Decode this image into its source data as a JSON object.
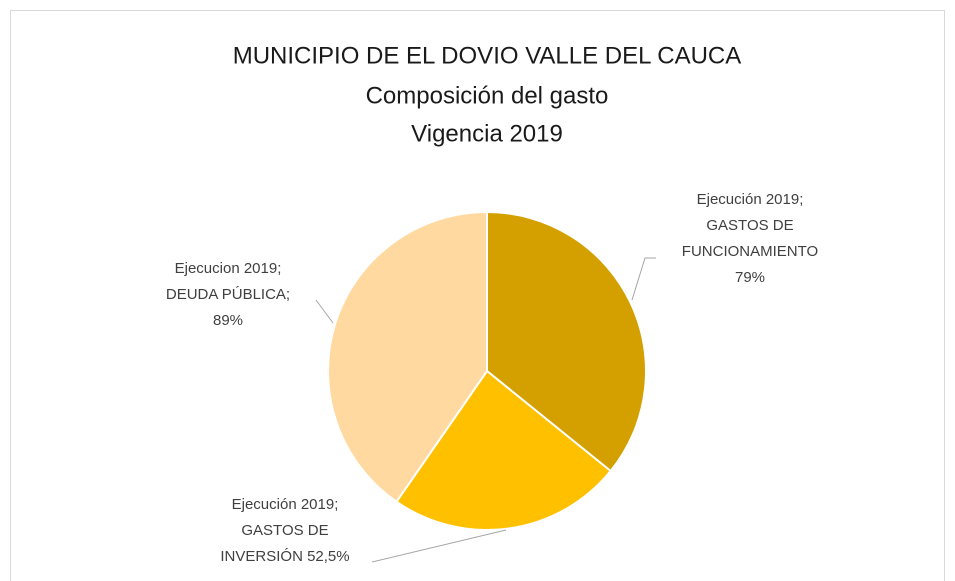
{
  "chart_data": {
    "type": "pie",
    "title": [
      "MUNICIPIO DE EL DOVIO VALLE DEL CAUCA",
      "Composición del gasto",
      "Vigencia 2019"
    ],
    "labels": [
      [
        "Ejecución 2019;",
        "GASTOS DE",
        "FUNCIONAMIENTO",
        "79%"
      ],
      [
        "Ejecución 2019;",
        "GASTOS DE",
        "INVERSIÓN 52,5%"
      ],
      [
        "Ejecucion 2019;",
        "DEUDA PÚBLICA;",
        "89%"
      ]
    ],
    "values": [
      79,
      52.5,
      89
    ],
    "colors": [
      "#d4a000",
      "#ffc000",
      "#ffd9a0"
    ]
  }
}
